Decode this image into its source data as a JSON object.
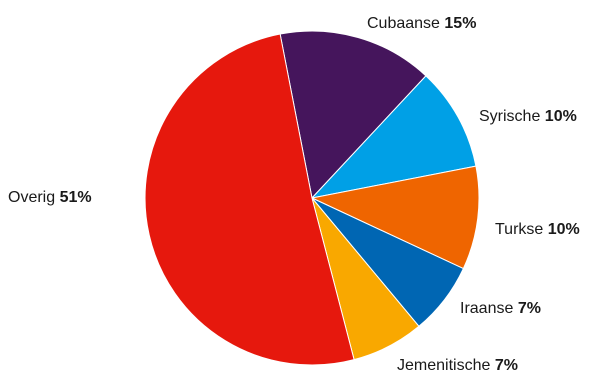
{
  "chart_data": {
    "type": "pie",
    "start_angle_deg": -11,
    "direction": "clockwise",
    "slices": [
      {
        "label": "Cubaanse",
        "value": 15,
        "value_label": "15%",
        "color": "#45155c"
      },
      {
        "label": "Syrische",
        "value": 10,
        "value_label": "10%",
        "color": "#00a0e6"
      },
      {
        "label": "Turkse",
        "value": 10,
        "value_label": "10%",
        "color": "#ef6500"
      },
      {
        "label": "Iraanse",
        "value": 7,
        "value_label": "7%",
        "color": "#0066b3"
      },
      {
        "label": "Jemenitische",
        "value": 7,
        "value_label": "7%",
        "color": "#f9a800"
      },
      {
        "label": "Overig",
        "value": 51,
        "value_label": "51%",
        "color": "#e6180d"
      }
    ]
  }
}
